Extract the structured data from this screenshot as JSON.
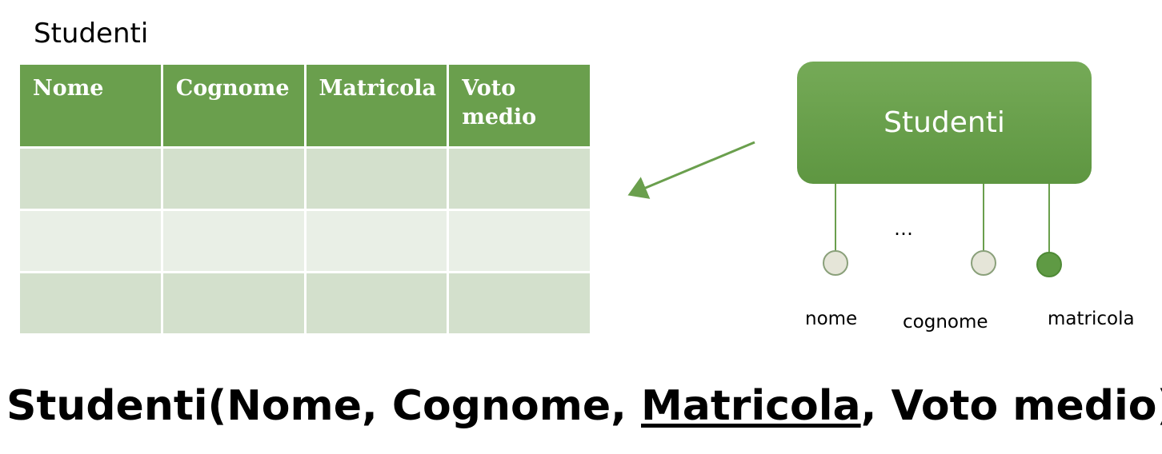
{
  "table": {
    "title": "Studenti",
    "headers": [
      "Nome",
      "Cognome",
      "Matricola",
      "Voto medio"
    ],
    "rows": [
      [
        "",
        "",
        "",
        ""
      ],
      [
        "",
        "",
        "",
        ""
      ],
      [
        "",
        "",
        "",
        ""
      ]
    ]
  },
  "er": {
    "entity": "Studenti",
    "ellipsis": "…",
    "attributes": [
      {
        "label": "nome",
        "key": false
      },
      {
        "label": "cognome",
        "key": false
      },
      {
        "label": "matricola",
        "key": true
      }
    ],
    "colors": {
      "entity": "#6a9f4d",
      "attr_fill": "#e5e5d8",
      "key_fill": "#5f9a44",
      "line": "#6a9f4d"
    }
  },
  "schema": {
    "prefix": "Studenti(Nome, Cognome, ",
    "key": "Matricola",
    "suffix": ", Voto medio)"
  }
}
